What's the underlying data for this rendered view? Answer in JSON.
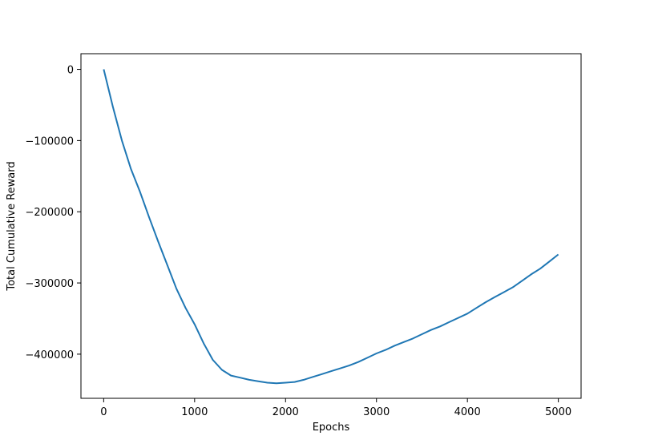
{
  "chart_data": {
    "type": "line",
    "title": "",
    "xlabel": "Epochs",
    "ylabel": "Total Cumulative Reward",
    "xlim": [
      -250,
      5250
    ],
    "ylim": [
      -462000,
      22000
    ],
    "xticks": [
      0,
      1000,
      2000,
      3000,
      4000,
      5000
    ],
    "xtick_labels": [
      "0",
      "1000",
      "2000",
      "3000",
      "4000",
      "5000"
    ],
    "yticks": [
      0,
      -100000,
      -200000,
      -300000,
      -400000
    ],
    "ytick_labels": [
      "0",
      "−100000",
      "−200000",
      "−300000",
      "−400000"
    ],
    "grid": false,
    "legend": "none",
    "series": [
      {
        "color": "#1f77b4",
        "x": [
          0,
          100,
          200,
          300,
          400,
          500,
          600,
          700,
          800,
          900,
          1000,
          1100,
          1200,
          1300,
          1400,
          1500,
          1600,
          1700,
          1800,
          1900,
          2000,
          2100,
          2200,
          2300,
          2400,
          2500,
          2600,
          2700,
          2800,
          2900,
          3000,
          3100,
          3200,
          3300,
          3400,
          3500,
          3600,
          3700,
          3800,
          3900,
          4000,
          4100,
          4200,
          4300,
          4400,
          4500,
          4600,
          4700,
          4800,
          4900,
          5000
        ],
        "y": [
          0,
          -52000,
          -100000,
          -140000,
          -172000,
          -208000,
          -242000,
          -275000,
          -308000,
          -335000,
          -358000,
          -385000,
          -408000,
          -422000,
          -430000,
          -433000,
          -436000,
          -438000,
          -440000,
          -441000,
          -440000,
          -439000,
          -436000,
          -432000,
          -428000,
          -424000,
          -420000,
          -416000,
          -411000,
          -405000,
          -399000,
          -394000,
          -388000,
          -383000,
          -378000,
          -372000,
          -366000,
          -361000,
          -355000,
          -349000,
          -343000,
          -335000,
          -327000,
          -320000,
          -313000,
          -306000,
          -297000,
          -288000,
          -280000,
          -270000,
          -260000
        ]
      }
    ]
  }
}
